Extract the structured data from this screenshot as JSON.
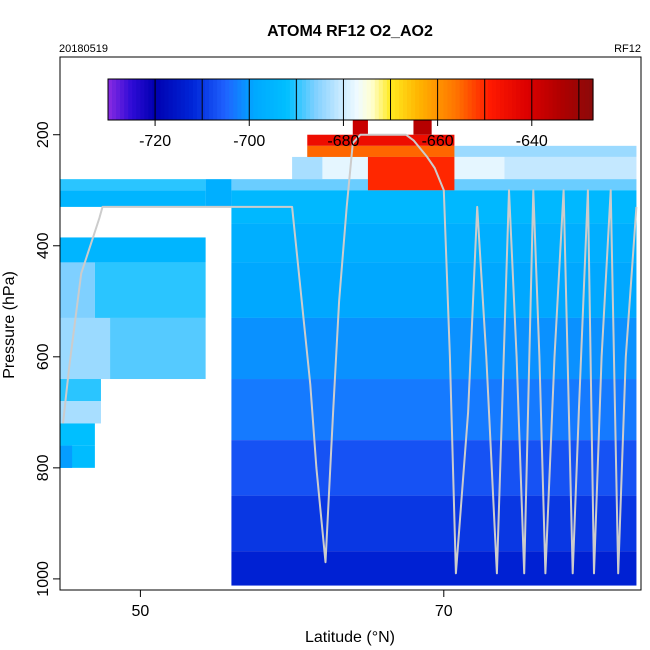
{
  "chart_data": {
    "type": "heatmap",
    "title": "ATOM4 RF12 O2_AO2",
    "subtitle_left": "20180519",
    "subtitle_right": "RF12",
    "xlabel": "Latitude (°N)",
    "ylabel": "Pressure (hPa)",
    "xlim": [
      44.7,
      83
    ],
    "ylim": [
      1020,
      60
    ],
    "x_ticks": [
      50,
      70
    ],
    "x_tick_labels": [
      "50",
      "70"
    ],
    "y_ticks": [
      200,
      400,
      600,
      800,
      1000
    ],
    "y_tick_labels": [
      "200",
      "400",
      "600",
      "800",
      "1000"
    ],
    "colorbar": {
      "range": [
        -730,
        -627
      ],
      "ticks": [
        -720,
        -700,
        -680,
        -660,
        -640
      ],
      "tick_labels": [
        "-720",
        "-700",
        "-680",
        "-660",
        "-640"
      ],
      "divisions": [
        -720,
        -710,
        -700,
        -690,
        -680,
        -670,
        -660,
        -650,
        -640,
        -630
      ],
      "color_stops": [
        {
          "v": -730,
          "c": "#8a2be2"
        },
        {
          "v": -725,
          "c": "#2e0bd6"
        },
        {
          "v": -720,
          "c": "#0000b0"
        },
        {
          "v": -712,
          "c": "#0026d8"
        },
        {
          "v": -705,
          "c": "#1f63ff"
        },
        {
          "v": -699,
          "c": "#00a8ff"
        },
        {
          "v": -692,
          "c": "#00bfff"
        },
        {
          "v": -686,
          "c": "#7fd0ff"
        },
        {
          "v": -681,
          "c": "#c4e8ff"
        },
        {
          "v": -677,
          "c": "#f0fbff"
        },
        {
          "v": -674,
          "c": "#ffffd0"
        },
        {
          "v": -670,
          "c": "#ffea20"
        },
        {
          "v": -664,
          "c": "#ffb400"
        },
        {
          "v": -656,
          "c": "#ff7300"
        },
        {
          "v": -649,
          "c": "#ff1a00"
        },
        {
          "v": -641,
          "c": "#dc0000"
        },
        {
          "v": -634,
          "c": "#b00000"
        },
        {
          "v": -627,
          "c": "#8b0a0a"
        }
      ]
    },
    "cells": [
      {
        "x0": 44.7,
        "x1": 54.3,
        "p_top": 385,
        "p_bot": 430,
        "v": -695
      },
      {
        "x0": 44.7,
        "x1": 47.0,
        "p_top": 430,
        "p_bot": 530,
        "v": -686
      },
      {
        "x0": 47.0,
        "x1": 54.3,
        "p_top": 430,
        "p_bot": 530,
        "v": -690
      },
      {
        "x0": 44.7,
        "x1": 48.0,
        "p_top": 530,
        "p_bot": 640,
        "v": -684
      },
      {
        "x0": 48.0,
        "x1": 54.3,
        "p_top": 530,
        "p_bot": 640,
        "v": -688
      },
      {
        "x0": 44.7,
        "x1": 47.4,
        "p_top": 640,
        "p_bot": 680,
        "v": -690
      },
      {
        "x0": 44.7,
        "x1": 47.4,
        "p_top": 680,
        "p_bot": 720,
        "v": -683
      },
      {
        "x0": 44.7,
        "x1": 47.0,
        "p_top": 720,
        "p_bot": 760,
        "v": -692
      },
      {
        "x0": 44.7,
        "x1": 47.0,
        "p_top": 760,
        "p_bot": 800,
        "v": -693
      },
      {
        "x0": 44.7,
        "x1": 45.5,
        "p_top": 760,
        "p_bot": 800,
        "v": -700
      },
      {
        "x0": 61.0,
        "x1": 82.7,
        "p_top": 220,
        "p_bot": 240,
        "v": -684
      },
      {
        "x0": 60.0,
        "x1": 62.0,
        "p_top": 240,
        "p_bot": 280,
        "v": -683
      },
      {
        "x0": 62.0,
        "x1": 74.0,
        "p_top": 240,
        "p_bot": 280,
        "v": -678
      },
      {
        "x0": 74.0,
        "x1": 82.7,
        "p_top": 240,
        "p_bot": 280,
        "v": -681
      },
      {
        "x0": 56.0,
        "x1": 82.7,
        "p_top": 280,
        "p_bot": 300,
        "v": -687
      },
      {
        "x0": 56.0,
        "x1": 82.7,
        "p_top": 300,
        "p_bot": 360,
        "v": -694
      },
      {
        "x0": 56.0,
        "x1": 82.7,
        "p_top": 360,
        "p_bot": 430,
        "v": -697
      },
      {
        "x0": 56.0,
        "x1": 82.7,
        "p_top": 430,
        "p_bot": 530,
        "v": -699
      },
      {
        "x0": 56.0,
        "x1": 82.7,
        "p_top": 530,
        "p_bot": 640,
        "v": -701
      },
      {
        "x0": 56.0,
        "x1": 82.7,
        "p_top": 640,
        "p_bot": 750,
        "v": -703
      },
      {
        "x0": 56.0,
        "x1": 82.7,
        "p_top": 750,
        "p_bot": 850,
        "v": -707
      },
      {
        "x0": 56.0,
        "x1": 82.7,
        "p_top": 850,
        "p_bot": 950,
        "v": -710
      },
      {
        "x0": 56.0,
        "x1": 82.7,
        "p_top": 950,
        "p_bot": 1012,
        "v": -713
      },
      {
        "x0": 61.0,
        "x1": 70.7,
        "p_top": 200,
        "p_bot": 220,
        "v": -645
      },
      {
        "x0": 61.0,
        "x1": 70.7,
        "p_top": 220,
        "p_bot": 240,
        "v": -655
      },
      {
        "x0": 64.0,
        "x1": 65.0,
        "p_top": 100,
        "p_bot": 200,
        "v": -638
      },
      {
        "x0": 68.0,
        "x1": 69.2,
        "p_top": 100,
        "p_bot": 200,
        "v": -635
      },
      {
        "x0": 65.0,
        "x1": 70.7,
        "p_top": 240,
        "p_bot": 300,
        "v": -650
      },
      {
        "x0": 44.7,
        "x1": 54.3,
        "p_top": 280,
        "p_bot": 300,
        "v": -690
      },
      {
        "x0": 44.7,
        "x1": 54.3,
        "p_top": 300,
        "p_bot": 330,
        "v": -695
      },
      {
        "x0": 54.3,
        "x1": 56.0,
        "p_top": 280,
        "p_bot": 330,
        "v": -697
      }
    ],
    "flight_track": {
      "label": "aircraft altitude trace",
      "points": [
        [
          44.9,
          720
        ],
        [
          45.3,
          620
        ],
        [
          46.1,
          450
        ],
        [
          47.3,
          350
        ],
        [
          47.5,
          330
        ],
        [
          55.0,
          330
        ],
        [
          57.5,
          330
        ],
        [
          58.5,
          330
        ],
        [
          60.0,
          330
        ],
        [
          61.2,
          650
        ],
        [
          61.6,
          800
        ],
        [
          62.2,
          970
        ],
        [
          62.7,
          700
        ],
        [
          63.1,
          500
        ],
        [
          63.6,
          330
        ],
        [
          64.0,
          215
        ],
        [
          64.5,
          200
        ],
        [
          66.0,
          200
        ],
        [
          67.5,
          200
        ],
        [
          68.0,
          210
        ],
        [
          68.9,
          240
        ],
        [
          69.4,
          260
        ],
        [
          70.0,
          300
        ],
        [
          70.4,
          600
        ],
        [
          70.8,
          990
        ],
        [
          71.6,
          700
        ],
        [
          72.2,
          330
        ],
        [
          72.8,
          600
        ],
        [
          73.5,
          990
        ],
        [
          74.3,
          300
        ],
        [
          74.8,
          600
        ],
        [
          75.3,
          990
        ],
        [
          75.9,
          300
        ],
        [
          76.3,
          600
        ],
        [
          76.7,
          990
        ],
        [
          77.3,
          600
        ],
        [
          77.9,
          300
        ],
        [
          78.5,
          990
        ],
        [
          78.9,
          700
        ],
        [
          79.5,
          300
        ],
        [
          79.9,
          990
        ],
        [
          80.4,
          600
        ],
        [
          81.0,
          300
        ],
        [
          81.5,
          990
        ],
        [
          82.0,
          600
        ],
        [
          82.7,
          330
        ]
      ]
    }
  },
  "colors": {
    "axis": "#000000",
    "track": "#cccccc"
  }
}
